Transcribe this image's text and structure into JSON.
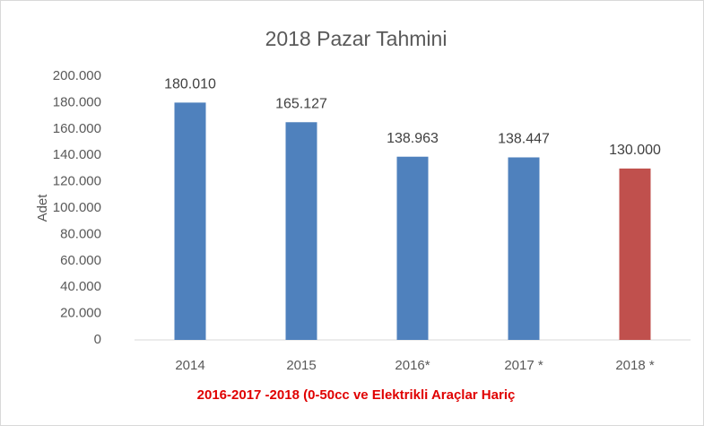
{
  "chart_data": {
    "type": "bar",
    "title": "2018 Pazar Tahmini",
    "ylabel": "Adet",
    "annotation": "2016-2017 -2018 (0-50cc ve Elektrikli Araçlar Hariç",
    "categories": [
      "2014",
      "2015",
      "2016*",
      "2017 *",
      "2018 *"
    ],
    "values": [
      180010,
      165127,
      138963,
      138447,
      130000
    ],
    "value_labels": [
      "180.010",
      "165.127",
      "138.963",
      "138.447",
      "130.000"
    ],
    "colors": [
      "#4f81bd",
      "#4f81bd",
      "#4f81bd",
      "#4f81bd",
      "#c0504d"
    ],
    "ylim": [
      0,
      200000
    ],
    "yticks": [
      0,
      {
        "value": 20000,
        "label": "20.000"
      },
      {
        "value": 40000,
        "label": "40.000"
      },
      {
        "value": 60000,
        "label": "60.000"
      },
      {
        "value": 80000,
        "label": "80.000"
      },
      {
        "value": 100000,
        "label": "100.000"
      },
      {
        "value": 120000,
        "label": "120.000"
      },
      {
        "value": 140000,
        "label": "140.000"
      },
      {
        "value": 160000,
        "label": "160.000"
      },
      {
        "value": 180000,
        "label": "180.000"
      },
      {
        "value": 200000,
        "label": "200.000"
      }
    ],
    "grid": false
  }
}
